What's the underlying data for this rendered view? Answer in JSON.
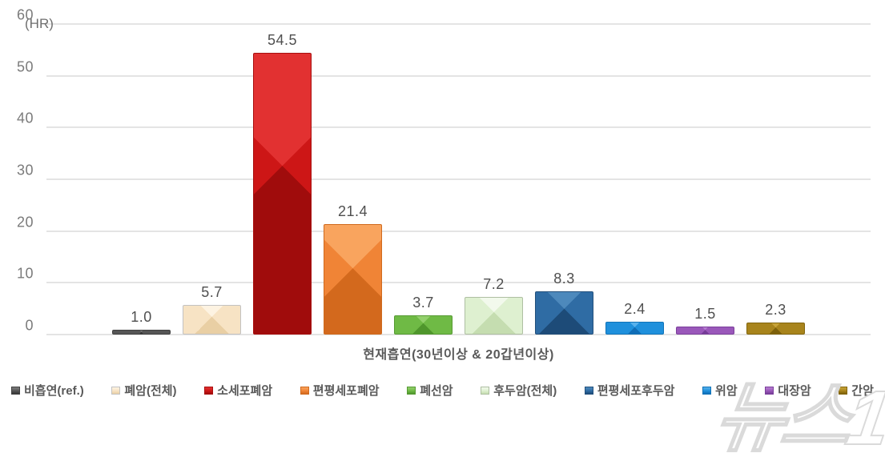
{
  "chart_data": {
    "type": "bar",
    "title": "",
    "xlabel": "현재흡연(30년이상 & 20갑년이상)",
    "ylabel": "(HR)",
    "ylim": [
      0,
      60
    ],
    "y_ticks": [
      60,
      50,
      40,
      30,
      20,
      10,
      0
    ],
    "grid": true,
    "legend_position": "bottom",
    "categories": [
      "비흡연(ref.)",
      "폐암(전체)",
      "소세포폐암",
      "편평세포폐암",
      "폐선암",
      "후두암(전체)",
      "편평세포후두암",
      "위암",
      "대장암",
      "간암"
    ],
    "values": [
      1.0,
      5.7,
      54.5,
      21.4,
      3.7,
      7.2,
      8.3,
      2.4,
      1.5,
      2.3
    ],
    "value_labels": [
      "1.0",
      "5.7",
      "54.5",
      "21.4",
      "3.7",
      "7.2",
      "8.3",
      "2.4",
      "1.5",
      "2.3"
    ],
    "colors": [
      {
        "light": "#7d7d7d",
        "mid": "#565656",
        "dark": "#353535",
        "border": "#414141"
      },
      {
        "light": "#fdf3e2",
        "mid": "#f7e3c4",
        "dark": "#e9cfa4",
        "border": "#c2c2c2"
      },
      {
        "light": "#e23131",
        "mid": "#cd1616",
        "dark": "#a00c0c",
        "border": "#a80f0f"
      },
      {
        "light": "#f9a45e",
        "mid": "#f08436",
        "dark": "#d3691d",
        "border": "#cf6a1e"
      },
      {
        "light": "#93d06c",
        "mid": "#6fba45",
        "dark": "#4f962c",
        "border": "#569a33"
      },
      {
        "light": "#f2f9ec",
        "mid": "#def0d0",
        "dark": "#c5ddb0",
        "border": "#aebfa2"
      },
      {
        "light": "#4d89bc",
        "mid": "#2f6ca4",
        "dark": "#1d4b78",
        "border": "#23507c"
      },
      {
        "light": "#58b1ec",
        "mid": "#1f90dc",
        "dark": "#0f6db6",
        "border": "#1173b8"
      },
      {
        "light": "#b77ed2",
        "mid": "#9a58ba",
        "dark": "#763c97",
        "border": "#7b3f9b"
      },
      {
        "light": "#c7a338",
        "mid": "#a8841c",
        "dark": "#7d600a",
        "border": "#82650d"
      }
    ]
  },
  "watermark": {
    "text": "뉴스1"
  }
}
